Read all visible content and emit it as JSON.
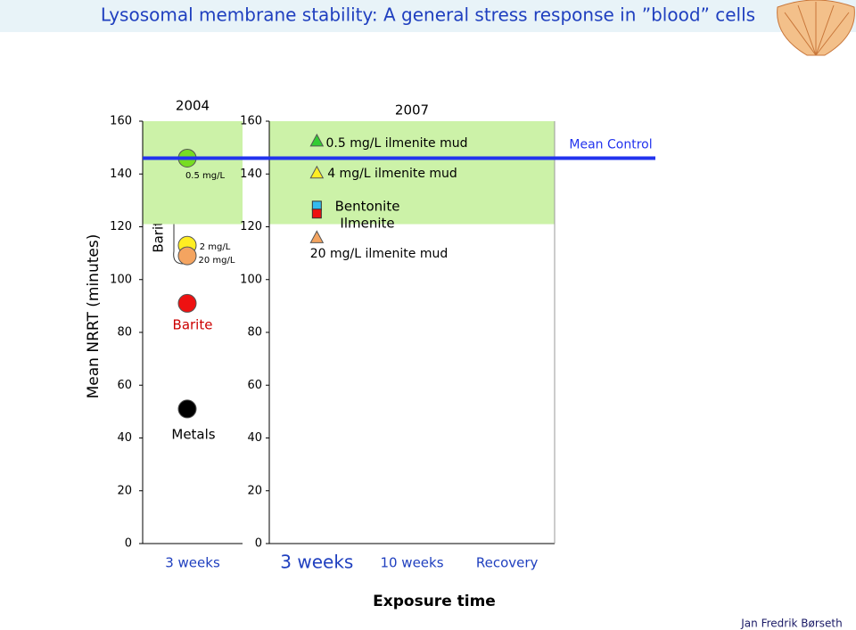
{
  "title": "Lysosomal membrane stability: A general stress response in ”blood” cells",
  "y_label": "Mean NRRT (minutes)",
  "x_label": "Exposure time",
  "author": "Jan Fredrik Børseth",
  "group_label": "Barite mud",
  "reference_line": {
    "label": "Mean Control",
    "value": 146,
    "color": "#2233ee"
  },
  "shaded_range": [
    121,
    160
  ],
  "chart_data": [
    {
      "type": "scatter",
      "title": "2004",
      "categories": [
        "3 weeks"
      ],
      "ylim": [
        0,
        160
      ],
      "yticks": [
        0,
        20,
        40,
        60,
        80,
        100,
        120,
        140,
        160
      ],
      "series": [
        {
          "name": "0.5 mg/L",
          "color": "#77dd22",
          "marker": "circle",
          "values": [
            146
          ]
        },
        {
          "name": "2 mg/L",
          "color": "#ffee22",
          "marker": "circle",
          "values": [
            113
          ]
        },
        {
          "name": "20 mg/L",
          "color": "#f4a460",
          "marker": "circle",
          "values": [
            109
          ]
        },
        {
          "name": "Barite",
          "color": "#ee1111",
          "marker": "circle",
          "values": [
            91
          ]
        },
        {
          "name": "Metals",
          "color": "#000000",
          "marker": "circle",
          "values": [
            51
          ]
        }
      ]
    },
    {
      "type": "scatter",
      "title": "2007",
      "categories": [
        "3 weeks",
        "10 weeks",
        "Recovery"
      ],
      "ylim": [
        0,
        160
      ],
      "yticks": [
        0,
        20,
        40,
        60,
        80,
        100,
        120,
        140,
        160
      ],
      "series": [
        {
          "name": "0.5 mg/L ilmenite mud",
          "color": "#33cc33",
          "marker": "triangle",
          "values": [
            152.6,
            null,
            null
          ]
        },
        {
          "name": "4 mg/L ilmenite mud",
          "color": "#ffee22",
          "marker": "triangle",
          "values": [
            140.5,
            null,
            null
          ]
        },
        {
          "name": "Bentonite",
          "color": "#33bbee",
          "marker": "square",
          "values": [
            128,
            null,
            null
          ]
        },
        {
          "name": "Ilmenite",
          "color": "#ee1111",
          "marker": "square",
          "values": [
            125,
            null,
            null
          ]
        },
        {
          "name": "20 mg/L ilmenite mud",
          "color": "#f4a460",
          "marker": "triangle",
          "values": [
            116,
            null,
            null
          ]
        }
      ]
    }
  ]
}
